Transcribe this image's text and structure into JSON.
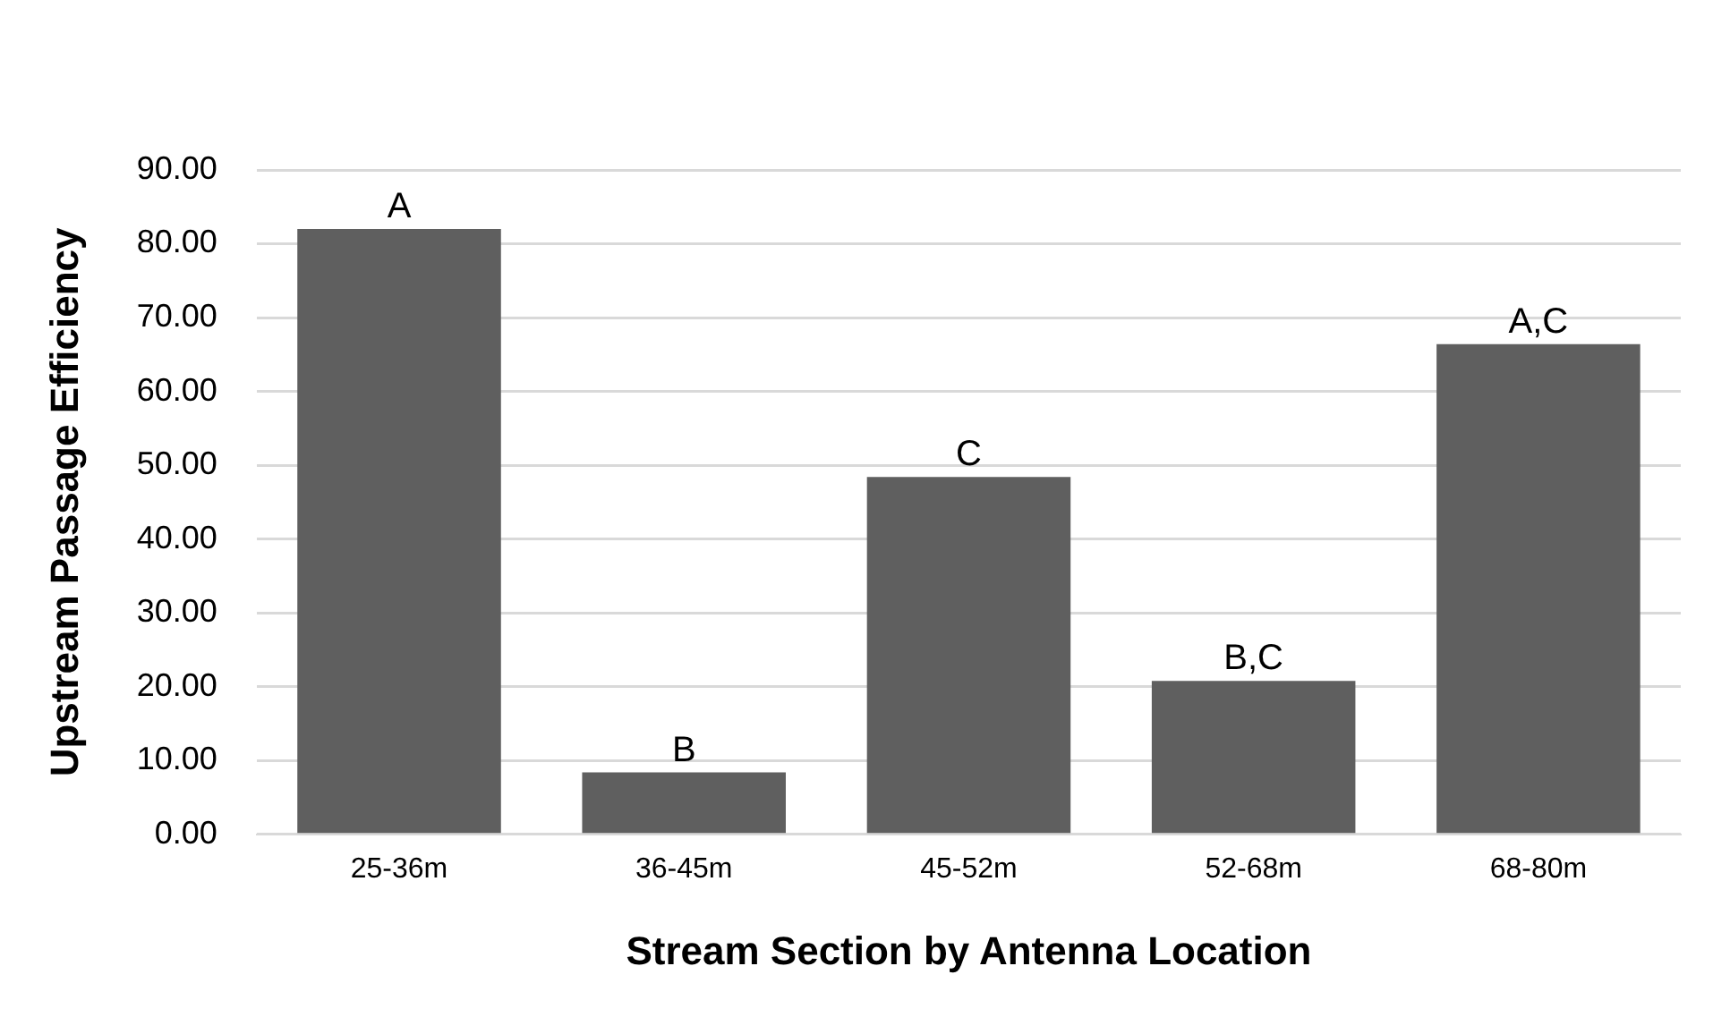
{
  "chart_data": {
    "type": "bar",
    "xlabel": "Stream Section by Antenna Location",
    "ylabel": "Upstream Passage Efficiency",
    "categories": [
      "25-36m",
      "36-45m",
      "45-52m",
      "52-68m",
      "68-80m"
    ],
    "values": [
      82,
      8.4,
      48.4,
      20.8,
      66.4
    ],
    "color": "#5f5f5f",
    "ylim": [
      0,
      90
    ],
    "yticks": [
      {
        "value": 0,
        "label": "0.00"
      },
      {
        "value": 10,
        "label": "10.00"
      },
      {
        "value": 20,
        "label": "20.00"
      },
      {
        "value": 30,
        "label": "30.00"
      },
      {
        "value": 40,
        "label": "40.00"
      },
      {
        "value": 50,
        "label": "50.00"
      },
      {
        "value": 60,
        "label": "60.00"
      },
      {
        "value": 70,
        "label": "70.00"
      },
      {
        "value": 80,
        "label": "80.00"
      },
      {
        "value": 90,
        "label": "90.00"
      }
    ],
    "grid": "y",
    "annotations": [
      {
        "text": "A",
        "x": "25-36m",
        "y": 82
      },
      {
        "text": "B",
        "x": "36-45m",
        "y": 8.4
      },
      {
        "text": "C",
        "x": "45-52m",
        "y": 48.4
      },
      {
        "text": "B,C",
        "x": "52-68m",
        "y": 20.8
      },
      {
        "text": "A,C",
        "x": "68-80m",
        "y": 66.4
      }
    ]
  }
}
